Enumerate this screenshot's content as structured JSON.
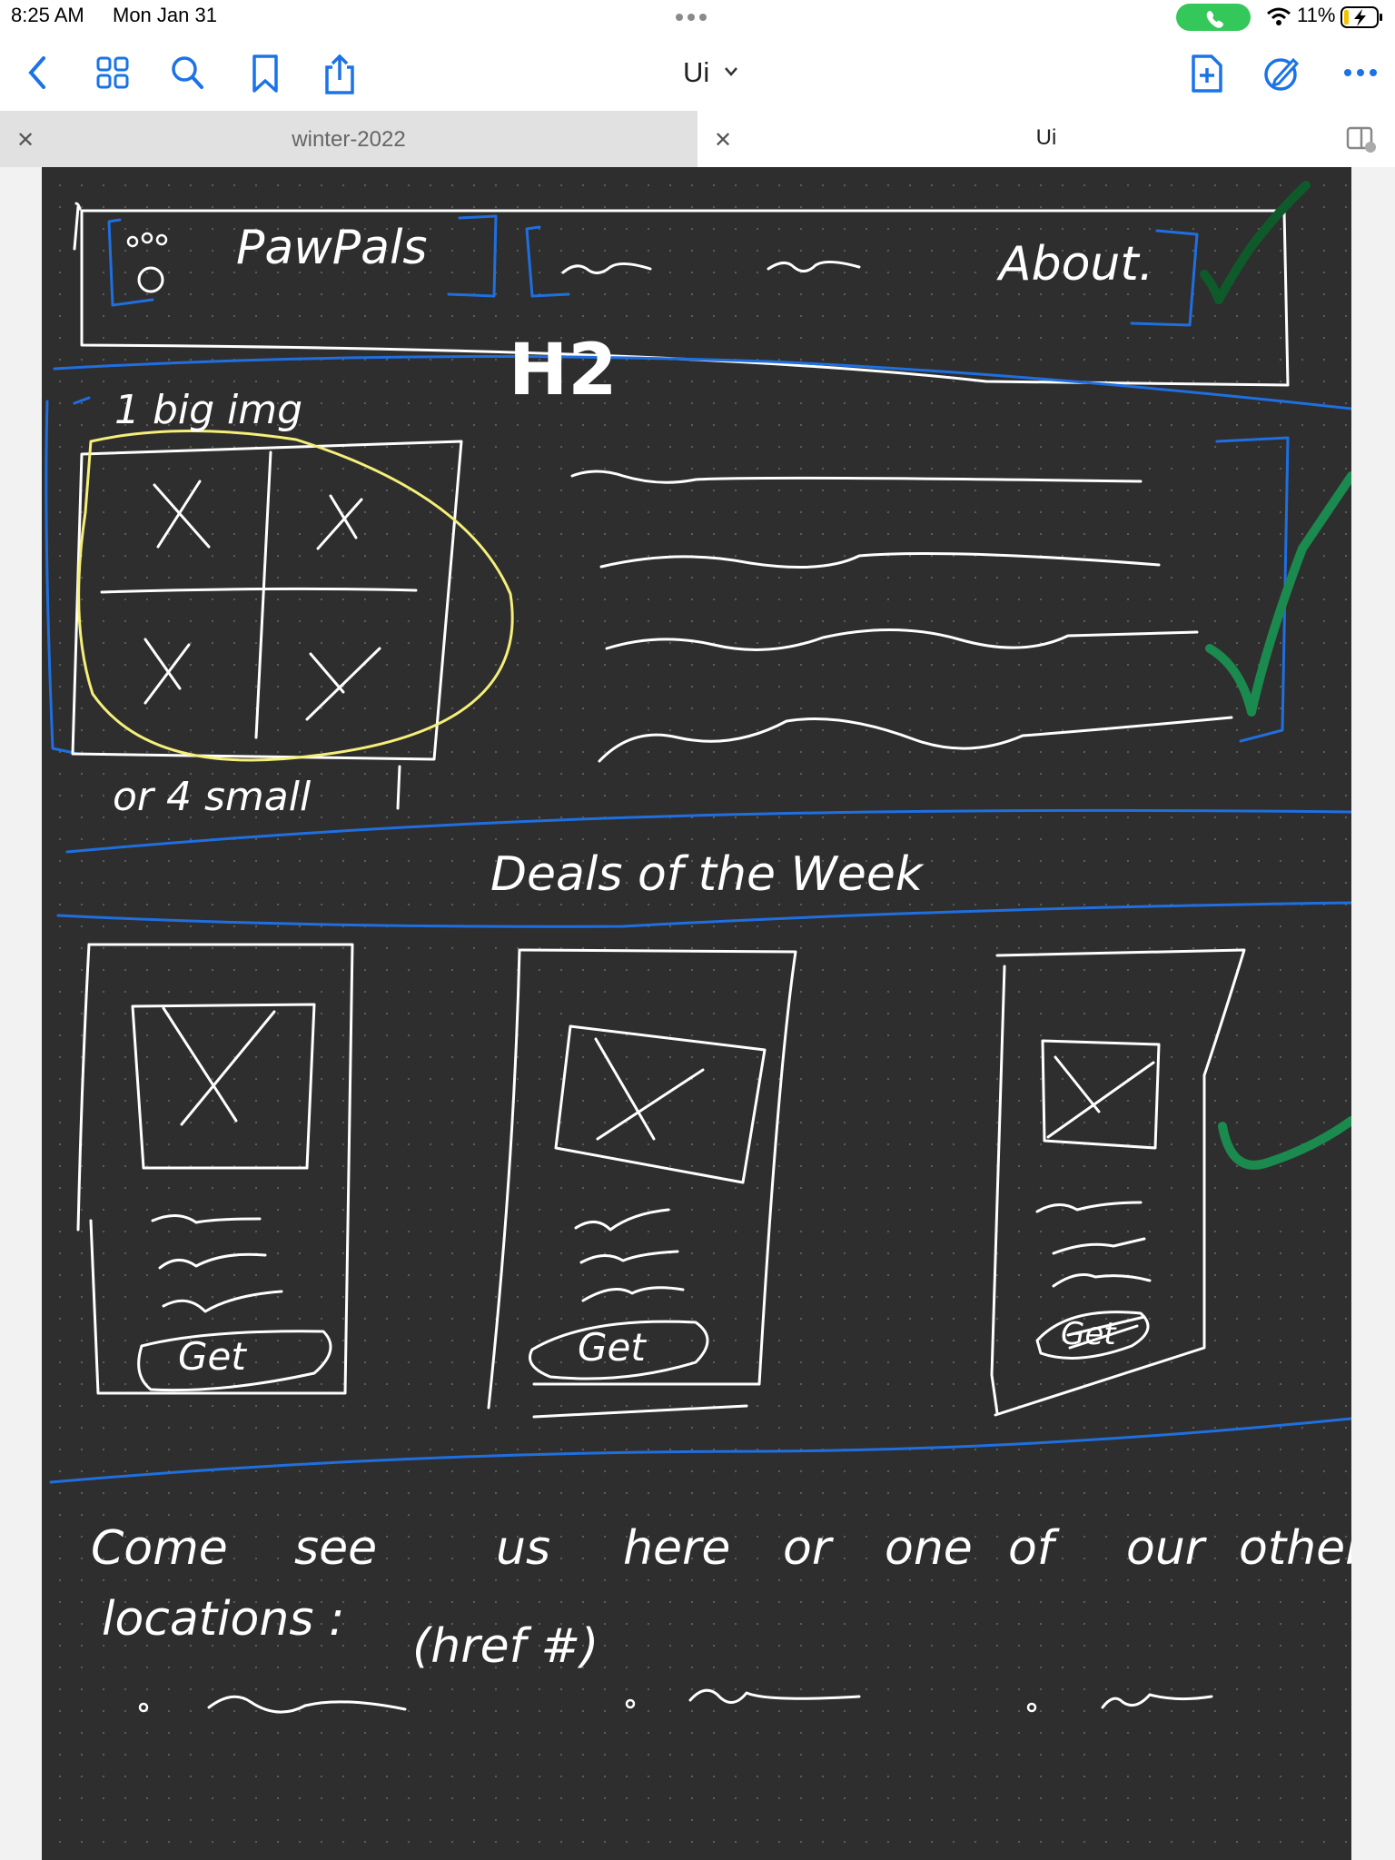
{
  "status_bar": {
    "time": "8:25 AM",
    "date": "Mon Jan 31",
    "battery": "11%"
  },
  "toolbar": {
    "title": "Ui"
  },
  "tabs": [
    {
      "label": "winter-2022",
      "active": false
    },
    {
      "label": "Ui",
      "active": true
    }
  ],
  "sketch": {
    "nav_brand": "PawPals",
    "nav_about": "About.",
    "hero_heading": "H2",
    "big_img_note": "1 big img",
    "small_img_note": "or 4 small",
    "section_title": "Deals of the Week",
    "card_button": "Get",
    "footer_line1_words": [
      "Come",
      "see",
      "us",
      "here",
      "or",
      "one",
      "of",
      "our",
      "other"
    ],
    "footer_line2": "locations :",
    "footer_href": "(href #)"
  },
  "colors": {
    "canvas": "#2e2e2e",
    "ink": "#ffffff",
    "blue": "#1f6fe0",
    "yellow": "#f5ef7a",
    "green": "#1b8a4f",
    "dark_green": "#0f5a2a",
    "accent": "#1a73e8"
  }
}
